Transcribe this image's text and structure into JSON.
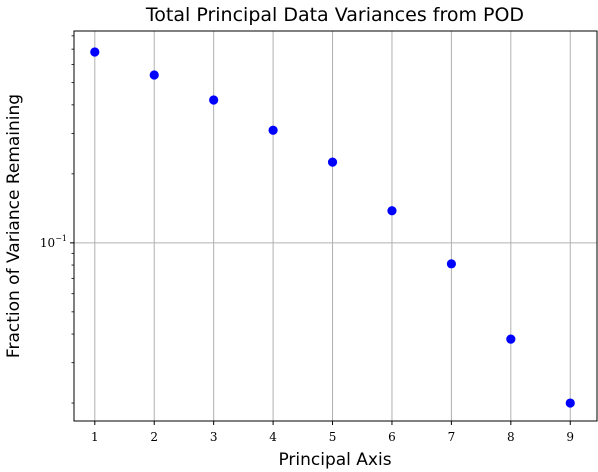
{
  "chart_data": {
    "type": "scatter",
    "title": "Total Principal Data Variances from POD",
    "xlabel": "Principal Axis",
    "ylabel": "Fraction of Variance Remaining",
    "x": [
      1,
      2,
      3,
      4,
      5,
      6,
      7,
      8,
      9
    ],
    "y": [
      0.68,
      0.54,
      0.42,
      0.31,
      0.225,
      0.138,
      0.081,
      0.038,
      0.02
    ],
    "xlim": [
      0.65,
      9.45
    ],
    "ylim": [
      0.0167,
      0.84
    ],
    "yscale": "log",
    "xticks": [
      "1",
      "2",
      "3",
      "4",
      "5",
      "6",
      "7",
      "8",
      "9"
    ],
    "yticks": [
      {
        "value": 0.1,
        "base": "10",
        "exponent": "−1"
      }
    ],
    "grid": true,
    "marker_color": "#0000ff"
  }
}
